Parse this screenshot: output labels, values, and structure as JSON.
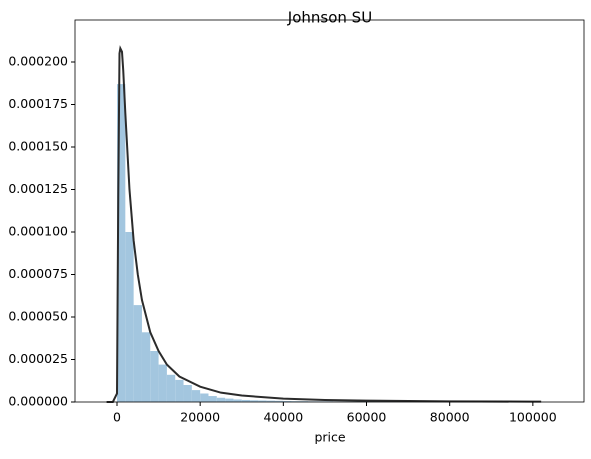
{
  "chart_data": {
    "type": "histogram",
    "title": "Johnson SU",
    "x_label": "price",
    "bins": [
      0,
      2000,
      4000,
      6000,
      8000,
      10000,
      12000,
      14000,
      16000,
      18000,
      20000,
      22000,
      24000,
      26000,
      28000,
      30000,
      32000,
      34000,
      36000,
      38000,
      40000,
      42000,
      44000,
      46000,
      48000,
      50000,
      52000,
      54000,
      56000,
      58000,
      60000,
      62000,
      64000,
      66000,
      68000,
      70000,
      72000,
      74000,
      76000,
      78000,
      80000,
      82000,
      84000,
      86000,
      88000,
      90000,
      92000,
      94000,
      96000,
      98000,
      100000
    ],
    "counts": [
      0.000187,
      0.0001,
      5.7e-05,
      4.1e-05,
      3e-05,
      2.2e-05,
      1.6e-05,
      1.3e-05,
      1e-05,
      7e-06,
      5e-06,
      3.5e-06,
      2.5e-06,
      2e-06,
      1.5e-06,
      1.2e-06,
      1e-06,
      9e-07,
      8e-07,
      7e-07,
      6e-07,
      5e-07,
      5e-07,
      4e-07,
      4e-07,
      4e-07,
      3e-07,
      3e-07,
      3e-07,
      3e-07,
      3e-07,
      2e-07,
      2e-07,
      2e-07,
      2e-07,
      2e-07,
      2e-07,
      2e-07,
      2e-07,
      2e-07,
      2e-07,
      2e-07,
      1e-07,
      1e-07,
      1e-07,
      1e-07,
      1e-07,
      1e-07,
      1e-07,
      1e-07
    ],
    "color": "#a3c6df",
    "line": {
      "color": "#2b2b2b",
      "x": [
        -2500,
        -1000,
        0,
        300,
        600,
        800,
        1200,
        1500,
        2000,
        3000,
        4000,
        5000,
        6000,
        8000,
        10000,
        12000,
        15000,
        20000,
        25000,
        30000,
        40000,
        50000,
        60000,
        80000,
        100000,
        102000
      ],
      "y": [
        0,
        0,
        5e-06,
        0.00012,
        0.000205,
        0.000208,
        0.000206,
        0.000195,
        0.00017,
        0.000125,
        9.5e-05,
        7.5e-05,
        6e-05,
        4.1e-05,
        3e-05,
        2.2e-05,
        1.5e-05,
        9e-06,
        5.5e-06,
        3.8e-06,
        2e-06,
        1.2e-06,
        8e-07,
        4e-07,
        2e-07,
        2e-07
      ]
    },
    "xlim": [
      -10100,
      112300
    ],
    "xticks": [
      0,
      20000,
      40000,
      60000,
      80000,
      100000
    ],
    "ylim": [
      0,
      0.0002247
    ],
    "yticks": [
      {
        "value": 0,
        "label": "0.000000"
      },
      {
        "value": 2.5e-05,
        "label": "0.000025"
      },
      {
        "value": 5e-05,
        "label": "0.000050"
      },
      {
        "value": 7.5e-05,
        "label": "0.000075"
      },
      {
        "value": 0.0001,
        "label": "0.000100"
      },
      {
        "value": 0.000125,
        "label": "0.000125"
      },
      {
        "value": 0.00015,
        "label": "0.000150"
      },
      {
        "value": 0.000175,
        "label": "0.000175"
      },
      {
        "value": 0.0002,
        "label": "0.000200"
      }
    ]
  }
}
